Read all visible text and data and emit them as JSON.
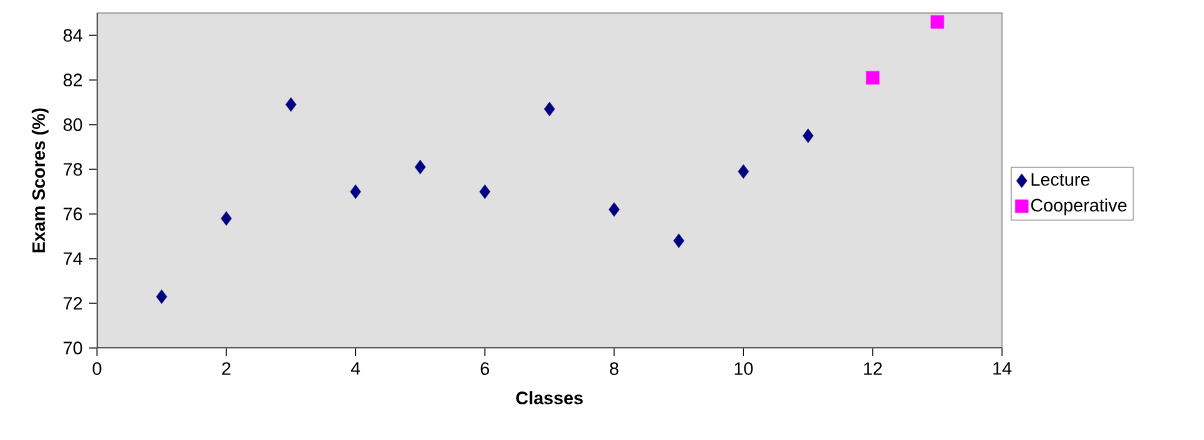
{
  "chart_data": {
    "type": "scatter",
    "xlabel": "Classes",
    "ylabel": "Exam Scores (%)",
    "xlim": [
      0,
      14
    ],
    "xticks": [
      0,
      2,
      4,
      6,
      8,
      10,
      12,
      14
    ],
    "ylim": [
      70,
      85
    ],
    "yticks": [
      70,
      72,
      74,
      76,
      78,
      80,
      82,
      84
    ],
    "grid": false,
    "legend": "right",
    "series": [
      {
        "name": "Lecture",
        "color": "#000080",
        "marker": "diamond",
        "x": [
          1,
          2,
          3,
          4,
          5,
          6,
          7,
          8,
          9,
          10,
          11
        ],
        "values": [
          72.3,
          75.8,
          80.9,
          77.0,
          78.1,
          77.0,
          80.7,
          76.2,
          74.8,
          77.9,
          79.5
        ]
      },
      {
        "name": "Cooperative",
        "color": "#ff00ff",
        "marker": "square",
        "x": [
          12,
          13
        ],
        "values": [
          82.1,
          84.6
        ]
      }
    ]
  }
}
